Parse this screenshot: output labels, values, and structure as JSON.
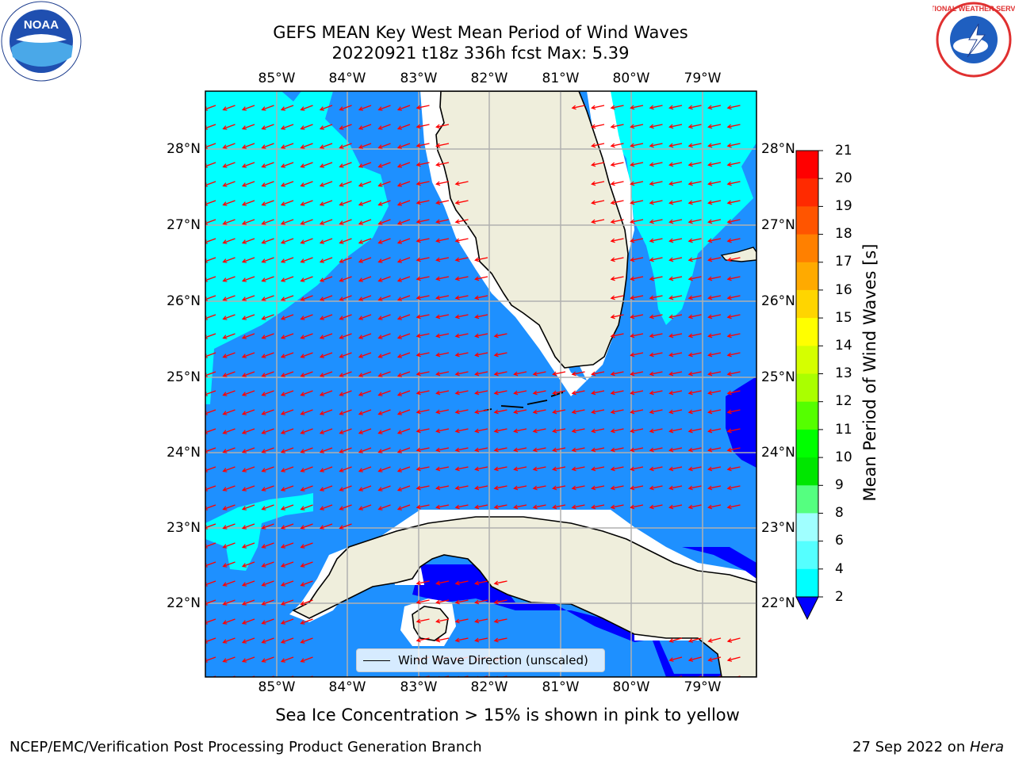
{
  "title_line1": "GEFS MEAN Key West Mean Period of Wind Waves",
  "title_line2": "20220921 t18z 336h fcst   Max: 5.39",
  "lon_labels": [
    "85°W",
    "84°W",
    "83°W",
    "82°W",
    "81°W",
    "80°W",
    "79°W"
  ],
  "lat_labels": [
    "28°N",
    "27°N",
    "26°N",
    "25°N",
    "24°N",
    "23°N",
    "22°N"
  ],
  "colorbar": {
    "title": "Mean Period of Wind Waves [s]",
    "ticks": [
      "21",
      "20",
      "19",
      "18",
      "17",
      "16",
      "15",
      "14",
      "13",
      "12",
      "11",
      "10",
      "9",
      "8",
      "6",
      "4",
      "2"
    ],
    "colors": [
      "#ff0000",
      "#ff2a00",
      "#ff5500",
      "#ff8000",
      "#ffaa00",
      "#ffd500",
      "#ffff00",
      "#d5ff00",
      "#aaff00",
      "#55ff00",
      "#00ff00",
      "#00e600",
      "#55ff80",
      "#a0ffff",
      "#55ffff",
      "#00ffff",
      "#1e90ff"
    ],
    "under_color": "#0000ff"
  },
  "legend": {
    "label": "Wind Wave Direction (unscaled)"
  },
  "footer": {
    "note": "Sea Ice Concentration > 15% is shown in pink to yellow",
    "left": "NCEP/EMC/Verification Post Processing Product Generation Branch",
    "right_date": "27 Sep 2022 on ",
    "right_host": "Hera"
  },
  "logos": {
    "left": "NOAA",
    "right": "NATIONAL WEATHER SERVICE"
  },
  "map_colors": {
    "land": "#efeedc",
    "ocean_2_4": "#1e90ff",
    "ocean_4_6": "#00ffff",
    "ocean_below_2": "#0000ff",
    "arrows": "#ff0000",
    "grid": "#b0b0b0"
  }
}
